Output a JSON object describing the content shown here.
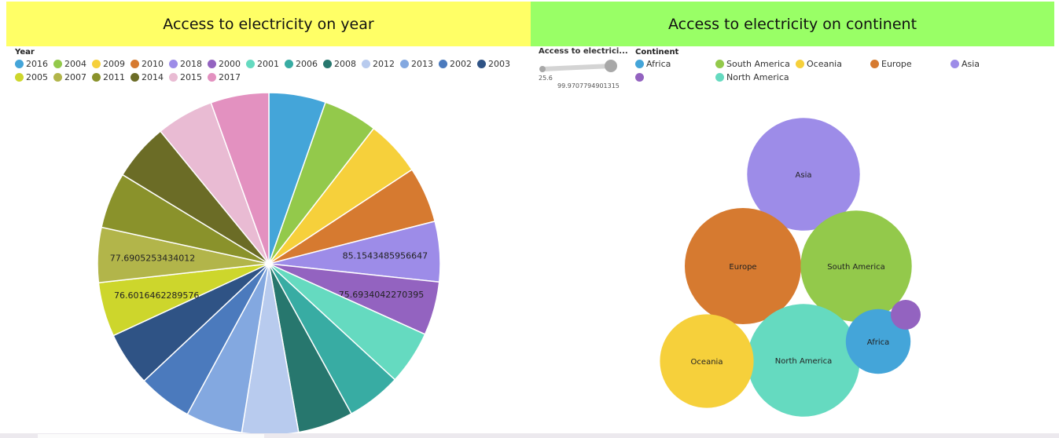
{
  "left": {
    "title": "Access to electricity on year",
    "legend_title": "Year"
  },
  "right": {
    "title": "Access to electricity on continent",
    "slider_label": "Access to electrici...",
    "slider_min": "25.6",
    "slider_max": "99.9707794901315",
    "legend_title": "Continent"
  },
  "colors": {
    "left_title_bg": "#ffff66",
    "right_title_bg": "#99ff66"
  },
  "chart_data": [
    {
      "type": "pie",
      "title": "Access to electricity on year",
      "legend_title": "Year",
      "legend_placement": "top",
      "legend_rows": [
        [
          "2016",
          "2004",
          "2009",
          "2010",
          "2018",
          "2000",
          "2001",
          "2006",
          "2008",
          "2012",
          "2013",
          "2002",
          "2003"
        ],
        [
          "2005",
          "2007",
          "2011",
          "2014",
          "2015",
          "2017"
        ]
      ],
      "slices": [
        {
          "category": "2016",
          "value": 80.2,
          "color": "#44a5d9",
          "label": ""
        },
        {
          "category": "2004",
          "value": 76.5,
          "color": "#93c94b",
          "label": ""
        },
        {
          "category": "2009",
          "value": 78.4,
          "color": "#f6d03b",
          "label": ""
        },
        {
          "category": "2010",
          "value": 78.9,
          "color": "#d67a30",
          "label": ""
        },
        {
          "category": "2018",
          "value": 85.1543485956647,
          "color": "#9d8ce8",
          "label": "85.1543485956647"
        },
        {
          "category": "2000",
          "value": 75.6934042270395,
          "color": "#9363c0",
          "label": "75.6934042270395"
        },
        {
          "category": "2001",
          "value": 76.0,
          "color": "#65dac0",
          "label": ""
        },
        {
          "category": "2006",
          "value": 77.0,
          "color": "#38aca3",
          "label": ""
        },
        {
          "category": "2008",
          "value": 78.0,
          "color": "#27776e",
          "label": ""
        },
        {
          "category": "2012",
          "value": 79.5,
          "color": "#b8cbee",
          "label": ""
        },
        {
          "category": "2013",
          "value": 80.0,
          "color": "#83a8e0",
          "label": ""
        },
        {
          "category": "2002",
          "value": 76.2,
          "color": "#4b7abd",
          "label": ""
        },
        {
          "category": "2003",
          "value": 76.4,
          "color": "#2f5385",
          "label": ""
        },
        {
          "category": "2005",
          "value": 76.6016462289576,
          "color": "#cdd62c",
          "label": "76.6016462289576"
        },
        {
          "category": "2007",
          "value": 77.6905253434012,
          "color": "#b2b54a",
          "label": "77.6905253434012"
        },
        {
          "category": "2011",
          "value": 79.0,
          "color": "#8a922b",
          "label": ""
        },
        {
          "category": "2014",
          "value": 80.5,
          "color": "#6b6c26",
          "label": ""
        },
        {
          "category": "2015",
          "value": 81.0,
          "color": "#e9bbd3",
          "label": ""
        },
        {
          "category": "2017",
          "value": 82.0,
          "color": "#e391c0",
          "label": ""
        }
      ]
    },
    {
      "type": "bubble",
      "title": "Access to electricity on continent",
      "legend_title": "Continent",
      "legend_placement": "top",
      "size_range": [
        25.6,
        99.9707794901315
      ],
      "legend_rows": [
        [
          "Africa",
          "South America",
          "Oceania",
          "Europe",
          "Asia"
        ],
        [
          "",
          "North America"
        ]
      ],
      "bubbles": [
        {
          "category": "Asia",
          "value": 95,
          "color": "#9d8ce8",
          "label": "Asia"
        },
        {
          "category": "Europe",
          "value": 99.9707794901315,
          "color": "#d67a30",
          "label": "Europe"
        },
        {
          "category": "South America",
          "value": 93,
          "color": "#93c94b",
          "label": "South America"
        },
        {
          "category": "North America",
          "value": 95,
          "color": "#65dac0",
          "label": "North America"
        },
        {
          "category": "Oceania",
          "value": 72,
          "color": "#f6d03b",
          "label": "Oceania"
        },
        {
          "category": "Africa",
          "value": 45,
          "color": "#44a5d9",
          "label": "Africa"
        },
        {
          "category": "",
          "value": 25.6,
          "color": "#9363c0",
          "label": ""
        }
      ]
    }
  ]
}
